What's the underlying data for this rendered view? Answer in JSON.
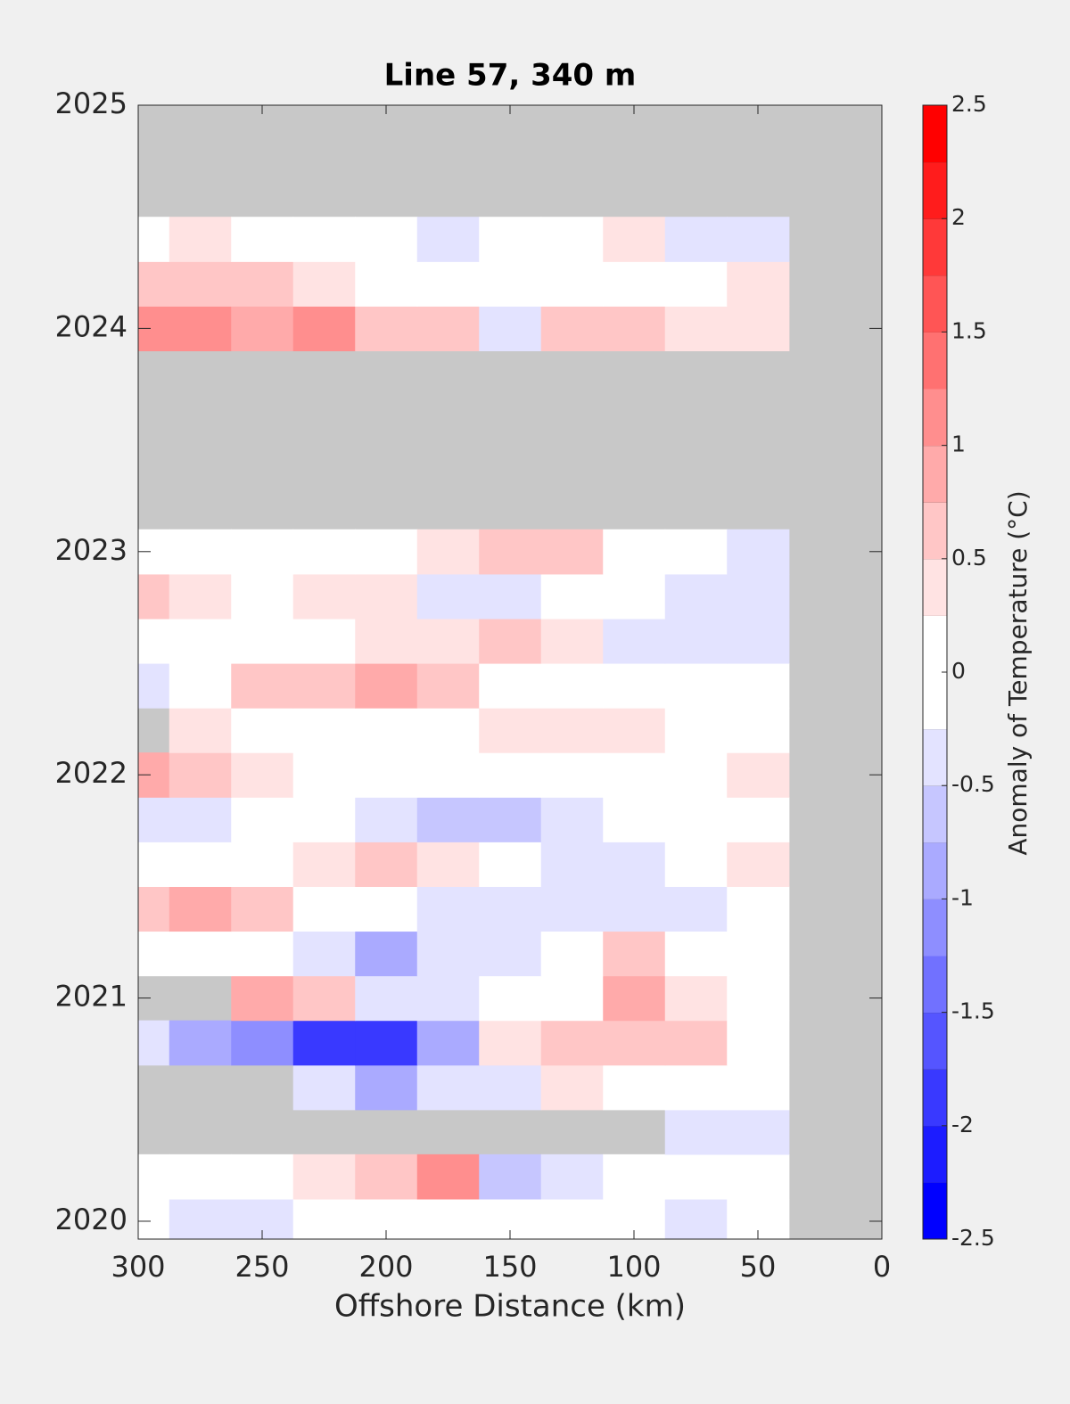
{
  "chart_data": {
    "type": "contour",
    "title": "Line 57, 340 m",
    "xlabel": "Offshore Distance (km)",
    "colorbar_label": "Anomaly of Temperature (°C)",
    "xlim": [
      300,
      0
    ],
    "xticks": [
      300,
      250,
      200,
      150,
      100,
      50,
      0
    ],
    "ylim": [
      2019.92,
      2025
    ],
    "yticks": [
      2020,
      2021,
      2022,
      2023,
      2024,
      2025
    ],
    "clim": [
      -2.5,
      2.5
    ],
    "cticks": [
      -2.5,
      -2,
      -1.5,
      -1,
      -0.5,
      0,
      0.5,
      1,
      1.5,
      2,
      2.5
    ],
    "x": [
      300,
      275,
      250,
      225,
      200,
      175,
      150,
      125,
      100,
      75,
      50
    ],
    "y": [
      2020.0,
      2020.2,
      2020.4,
      2020.6,
      2020.8,
      2021.0,
      2021.2,
      2021.4,
      2021.6,
      2021.8,
      2022.0,
      2022.2,
      2022.4,
      2022.6,
      2022.8,
      2023.0,
      2023.2,
      2023.4,
      2023.6,
      2023.8,
      2024.0,
      2024.2,
      2024.4
    ],
    "z": [
      [
        0,
        -0.5,
        -0.3,
        0,
        0,
        0,
        0,
        0,
        0,
        -0.3,
        0
      ],
      [
        0,
        0,
        0,
        0.3,
        0.5,
        1.0,
        -0.6,
        -0.3,
        0,
        0,
        0
      ],
      [
        null,
        null,
        null,
        null,
        null,
        null,
        null,
        null,
        null,
        -0.5,
        -0.3
      ],
      [
        null,
        null,
        null,
        -0.5,
        -0.8,
        -0.5,
        -0.3,
        0.3,
        0,
        0,
        0
      ],
      [
        -0.5,
        -0.8,
        -1.2,
        -1.8,
        -1.8,
        -0.8,
        0.3,
        0.5,
        0.6,
        0.5,
        0
      ],
      [
        null,
        null,
        0.8,
        0.5,
        -0.5,
        -0.5,
        0,
        0,
        0.8,
        0.3,
        0
      ],
      [
        0,
        0,
        0,
        -0.5,
        -0.8,
        -0.5,
        -0.3,
        0,
        0.5,
        0,
        0
      ],
      [
        0.5,
        0.8,
        0.5,
        0,
        0,
        -0.3,
        -0.5,
        -0.3,
        -0.3,
        -0.3,
        0
      ],
      [
        0,
        0,
        0,
        0.3,
        0.5,
        0.3,
        0,
        -0.3,
        -0.3,
        0,
        0.3
      ],
      [
        -0.3,
        -0.3,
        0,
        0,
        -0.3,
        -0.6,
        -0.7,
        -0.3,
        0,
        0,
        0
      ],
      [
        0.8,
        0.6,
        0.3,
        0,
        0,
        0,
        0,
        0,
        0,
        0,
        0.3
      ],
      [
        null,
        0.3,
        0,
        0,
        0,
        0,
        0.3,
        0.3,
        0.3,
        0,
        0
      ],
      [
        -0.3,
        0,
        0.5,
        0.7,
        0.9,
        0.5,
        0,
        0,
        0,
        0,
        0
      ],
      [
        0,
        0,
        0,
        0,
        0.3,
        0.3,
        0.5,
        0.3,
        -0.3,
        -0.5,
        -0.3
      ],
      [
        0.5,
        0.3,
        0,
        0.3,
        0.3,
        -0.3,
        -0.5,
        0,
        0,
        -0.3,
        -0.5
      ],
      [
        0,
        0,
        0,
        0,
        0,
        0.3,
        0.5,
        0.5,
        0,
        0,
        -0.3
      ],
      [
        null,
        null,
        null,
        null,
        null,
        null,
        null,
        null,
        null,
        null,
        null
      ],
      [
        null,
        null,
        null,
        null,
        null,
        null,
        null,
        null,
        null,
        null,
        null
      ],
      [
        null,
        null,
        null,
        null,
        null,
        null,
        null,
        null,
        null,
        null,
        null
      ],
      [
        null,
        null,
        null,
        null,
        null,
        null,
        null,
        null,
        null,
        null,
        null
      ],
      [
        1.0,
        1.0,
        0.8,
        1.0,
        0.5,
        0.5,
        -0.5,
        0.5,
        0.6,
        0.3,
        0.3
      ],
      [
        0.5,
        0.5,
        0.6,
        0.3,
        0,
        0,
        0,
        0,
        0,
        0,
        0.3
      ],
      [
        0,
        0.3,
        0,
        0,
        0,
        -0.3,
        0,
        0,
        0.3,
        -0.3,
        -0.5
      ]
    ]
  }
}
